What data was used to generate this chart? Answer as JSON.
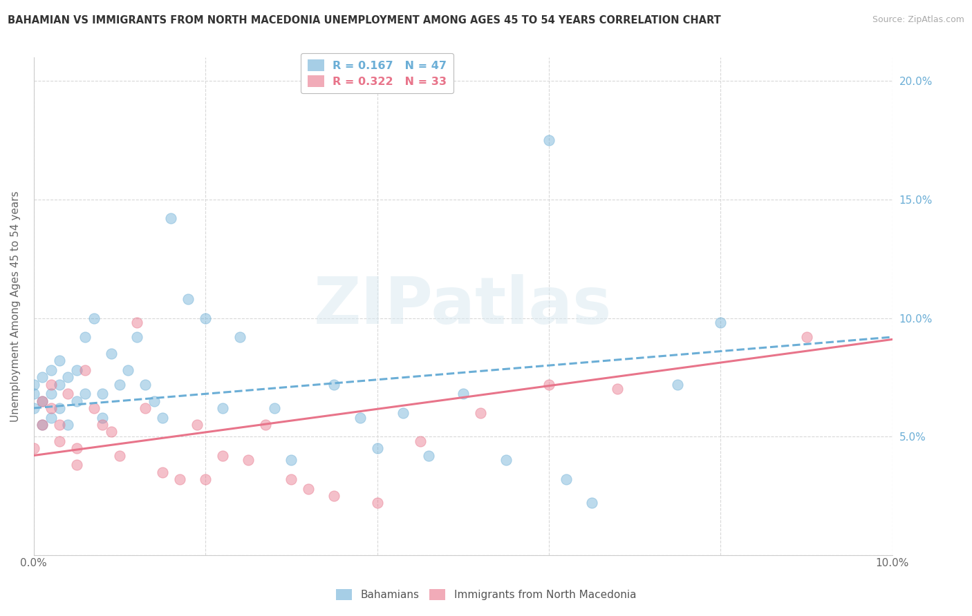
{
  "title": "BAHAMIAN VS IMMIGRANTS FROM NORTH MACEDONIA UNEMPLOYMENT AMONG AGES 45 TO 54 YEARS CORRELATION CHART",
  "source": "Source: ZipAtlas.com",
  "ylabel": "Unemployment Among Ages 45 to 54 years",
  "xlim": [
    0.0,
    0.1
  ],
  "ylim": [
    0.0,
    0.21
  ],
  "xticks": [
    0.0,
    0.02,
    0.04,
    0.06,
    0.08,
    0.1
  ],
  "xticklabels": [
    "0.0%",
    "",
    "",
    "",
    "",
    "10.0%"
  ],
  "yticks": [
    0.0,
    0.05,
    0.1,
    0.15,
    0.2
  ],
  "yticklabels": [
    "",
    "5.0%",
    "10.0%",
    "15.0%",
    "20.0%"
  ],
  "bahamians_x": [
    0.0,
    0.0,
    0.0,
    0.001,
    0.001,
    0.001,
    0.002,
    0.002,
    0.002,
    0.003,
    0.003,
    0.003,
    0.004,
    0.004,
    0.005,
    0.005,
    0.006,
    0.006,
    0.007,
    0.008,
    0.008,
    0.009,
    0.01,
    0.011,
    0.012,
    0.013,
    0.014,
    0.015,
    0.016,
    0.018,
    0.02,
    0.022,
    0.024,
    0.028,
    0.03,
    0.035,
    0.038,
    0.04,
    0.043,
    0.046,
    0.05,
    0.055,
    0.06,
    0.062,
    0.065,
    0.075,
    0.08
  ],
  "bahamians_y": [
    0.062,
    0.068,
    0.072,
    0.065,
    0.075,
    0.055,
    0.068,
    0.058,
    0.078,
    0.062,
    0.072,
    0.082,
    0.075,
    0.055,
    0.065,
    0.078,
    0.068,
    0.092,
    0.1,
    0.068,
    0.058,
    0.085,
    0.072,
    0.078,
    0.092,
    0.072,
    0.065,
    0.058,
    0.142,
    0.108,
    0.1,
    0.062,
    0.092,
    0.062,
    0.04,
    0.072,
    0.058,
    0.045,
    0.06,
    0.042,
    0.068,
    0.04,
    0.175,
    0.032,
    0.022,
    0.072,
    0.098
  ],
  "macedonia_x": [
    0.0,
    0.001,
    0.001,
    0.002,
    0.002,
    0.003,
    0.003,
    0.004,
    0.005,
    0.005,
    0.006,
    0.007,
    0.008,
    0.009,
    0.01,
    0.012,
    0.013,
    0.015,
    0.017,
    0.019,
    0.02,
    0.022,
    0.025,
    0.027,
    0.03,
    0.032,
    0.035,
    0.04,
    0.045,
    0.052,
    0.06,
    0.068,
    0.09
  ],
  "macedonia_y": [
    0.045,
    0.065,
    0.055,
    0.062,
    0.072,
    0.048,
    0.055,
    0.068,
    0.045,
    0.038,
    0.078,
    0.062,
    0.055,
    0.052,
    0.042,
    0.098,
    0.062,
    0.035,
    0.032,
    0.055,
    0.032,
    0.042,
    0.04,
    0.055,
    0.032,
    0.028,
    0.025,
    0.022,
    0.048,
    0.06,
    0.072,
    0.07,
    0.092
  ],
  "bahamians_color": "#6baed6",
  "macedonia_color": "#e8748a",
  "background_color": "#ffffff",
  "grid_color": "#d8d8d8",
  "R_bahamians": 0.167,
  "N_bahamians": 47,
  "R_macedonia": 0.322,
  "N_macedonia": 33,
  "trend_b_start": 0.062,
  "trend_b_end": 0.092,
  "trend_m_start": 0.042,
  "trend_m_end": 0.091,
  "watermark_text": "ZIPatlas"
}
